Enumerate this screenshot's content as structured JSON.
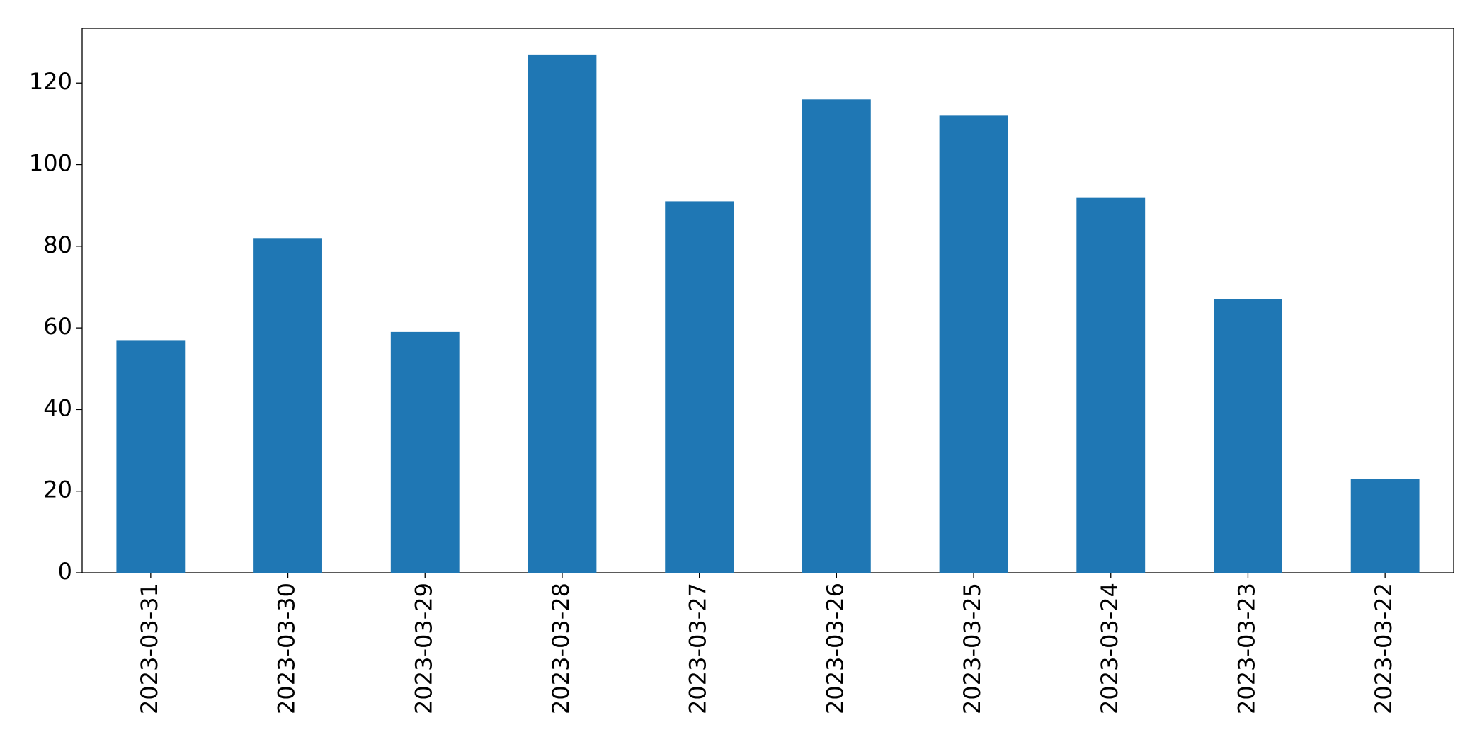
{
  "chart_data": {
    "type": "bar",
    "categories": [
      "2023-03-31",
      "2023-03-30",
      "2023-03-29",
      "2023-03-28",
      "2023-03-27",
      "2023-03-26",
      "2023-03-25",
      "2023-03-24",
      "2023-03-23",
      "2023-03-22"
    ],
    "values": [
      57,
      82,
      59,
      127,
      91,
      116,
      112,
      92,
      67,
      23
    ],
    "color": "#1f77b4",
    "ylim": [
      0,
      133.4
    ],
    "yticks": [
      0,
      20,
      40,
      60,
      80,
      100,
      120
    ],
    "grid": false
  }
}
